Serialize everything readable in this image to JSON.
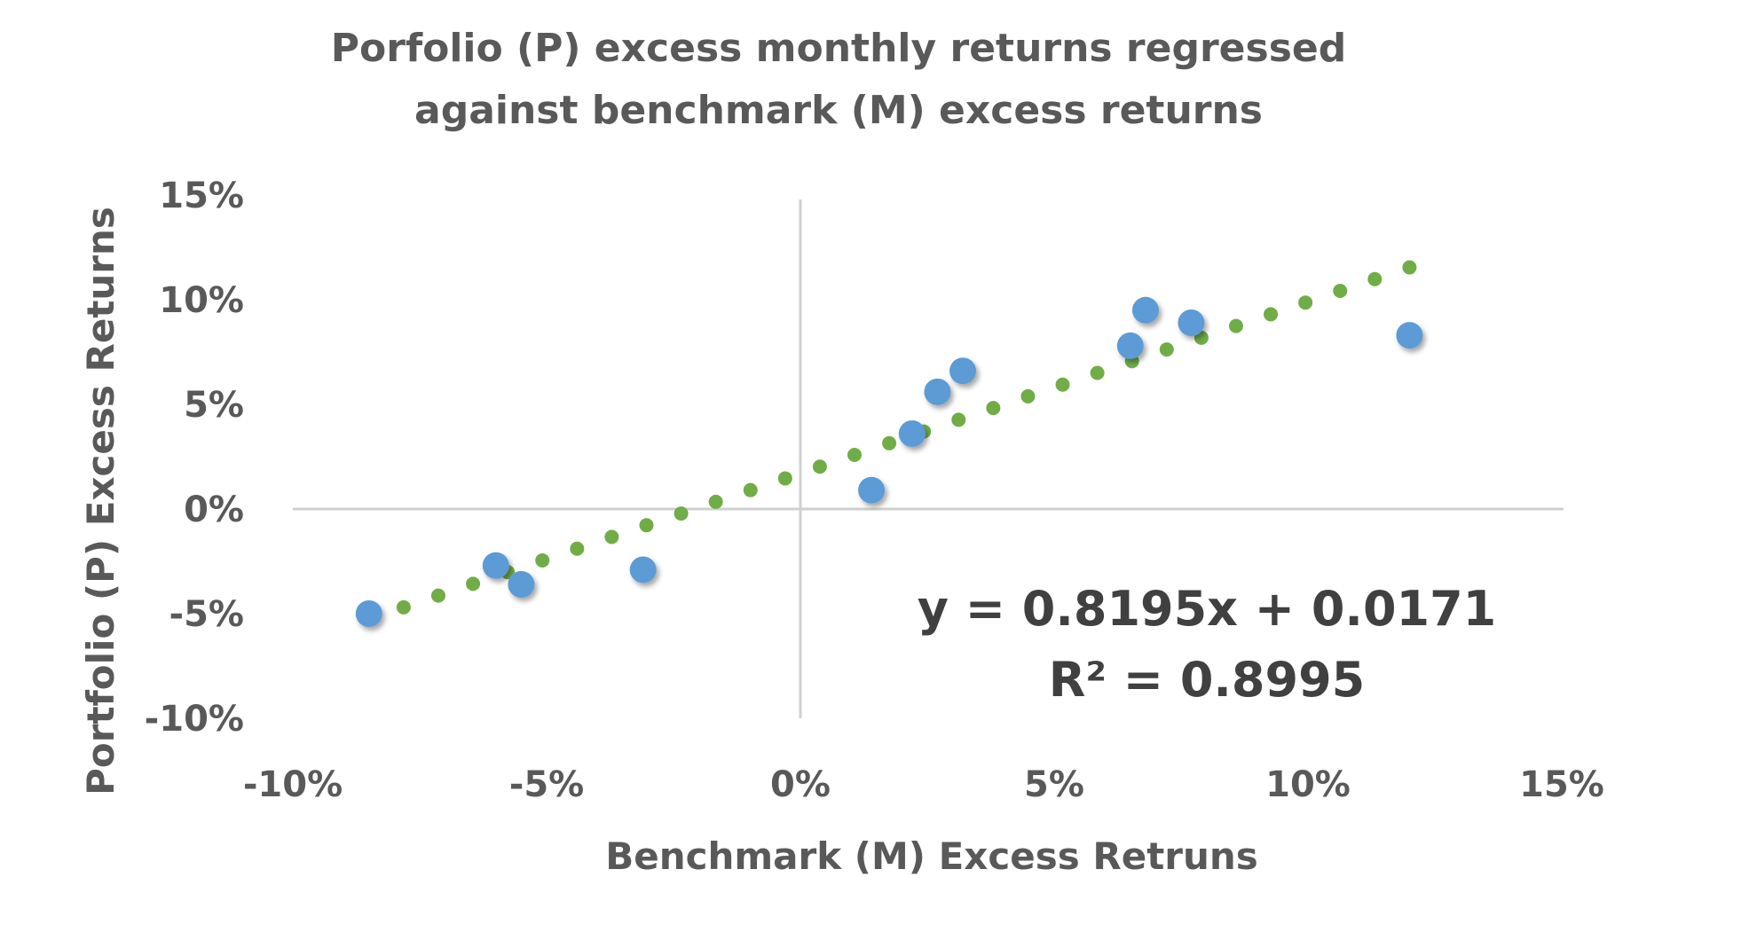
{
  "chart_data": {
    "type": "scatter",
    "title_lines": [
      "Porfolio (P) excess monthly returns regressed",
      "against benchmark (M) excess returns"
    ],
    "xlabel": "Benchmark (M) Excess Retruns",
    "ylabel": "Portfolio (P) Excess Returns",
    "xlim": [
      -0.1,
      0.15
    ],
    "ylim": [
      -0.1,
      0.15
    ],
    "x_ticks": [
      -0.1,
      -0.05,
      0.0,
      0.05,
      0.1,
      0.15
    ],
    "x_tick_labels": [
      "-10%",
      "-5%",
      "0%",
      "5%",
      "10%",
      "15%"
    ],
    "y_ticks": [
      -0.1,
      -0.05,
      0.0,
      0.05,
      0.1,
      0.15
    ],
    "y_tick_labels": [
      "-10%",
      "-5%",
      "0%",
      "5%",
      "10%",
      "15%"
    ],
    "grid": false,
    "legend": "none",
    "series": [
      {
        "x": [
          -0.085,
          -0.06,
          -0.055,
          -0.031,
          0.014,
          0.022,
          0.027,
          0.032,
          0.065,
          0.068,
          0.077,
          0.12
        ],
        "y": [
          -0.05,
          -0.027,
          -0.036,
          -0.029,
          0.009,
          0.036,
          0.056,
          0.066,
          0.078,
          0.095,
          0.089,
          0.083
        ],
        "color": "#5b9bd5"
      }
    ],
    "trendline": {
      "type": "linear",
      "slope": 0.8195,
      "intercept": 0.0171,
      "x_range": [
        -0.085,
        0.12
      ],
      "color": "#70ad47",
      "style": "dotted"
    },
    "annotations": [
      "y = 0.8195x + 0.0171",
      "R² = 0.8995"
    ]
  }
}
